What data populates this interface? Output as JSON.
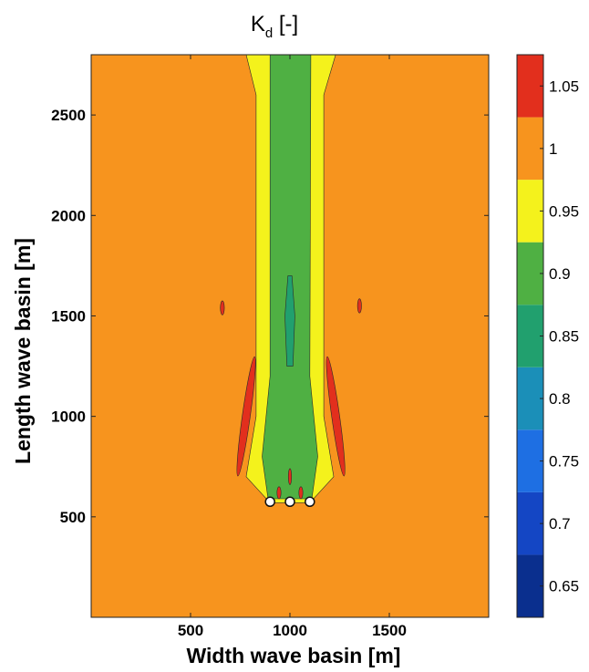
{
  "chart_data": {
    "type": "heatmap",
    "title": "K",
    "title_subscript": "d",
    "title_suffix": " [-]",
    "xlabel": "Width wave basin [m]",
    "ylabel": "Length wave basin [m]",
    "xlim": [
      0,
      2000
    ],
    "ylim": [
      0,
      2800
    ],
    "x_ticks": [
      500,
      1000,
      1500
    ],
    "y_ticks": [
      500,
      1000,
      1500,
      2000,
      2500
    ],
    "grid": false,
    "colorbar": {
      "range": [
        0.625,
        1.075
      ],
      "levels": [
        {
          "from": 0.625,
          "to": 0.675,
          "color": "#0a2f8e"
        },
        {
          "from": 0.675,
          "to": 0.725,
          "color": "#1446c4"
        },
        {
          "from": 0.725,
          "to": 0.775,
          "color": "#1e6fe3"
        },
        {
          "from": 0.775,
          "to": 0.825,
          "color": "#1b8fb8"
        },
        {
          "from": 0.825,
          "to": 0.875,
          "color": "#21a06e"
        },
        {
          "from": 0.875,
          "to": 0.925,
          "color": "#4fb043"
        },
        {
          "from": 0.925,
          "to": 0.975,
          "color": "#f4f21c"
        },
        {
          "from": 0.975,
          "to": 1.025,
          "color": "#f7941e"
        },
        {
          "from": 1.025,
          "to": 1.075,
          "color": "#e22f1d"
        }
      ],
      "tick_labels": [
        "0.65",
        "0.7",
        "0.75",
        "0.8",
        "0.85",
        "0.9",
        "0.95",
        "1",
        "1.05"
      ],
      "tick_values": [
        0.65,
        0.7,
        0.75,
        0.8,
        0.85,
        0.9,
        0.95,
        1.0,
        1.05
      ]
    },
    "background_value": 1.0,
    "field": {
      "wake_bands": [
        {
          "value": 0.95,
          "color": "#f4f21c",
          "polygon": [
            [
              900,
              570
            ],
            [
              780,
              700
            ],
            [
              830,
              1000
            ],
            [
              830,
              2600
            ],
            [
              780,
              2800
            ],
            [
              1230,
              2800
            ],
            [
              1170,
              2600
            ],
            [
              1170,
              1000
            ],
            [
              1220,
              700
            ],
            [
              1100,
              570
            ]
          ]
        },
        {
          "value": 0.9,
          "color": "#4fb043",
          "polygon": [
            [
              890,
              590
            ],
            [
              860,
              800
            ],
            [
              900,
              1200
            ],
            [
              900,
              2800
            ],
            [
              1105,
              2800
            ],
            [
              1100,
              1200
            ],
            [
              1140,
              800
            ],
            [
              1110,
              590
            ]
          ]
        },
        {
          "value": 0.85,
          "color": "#21a06e",
          "polygon": [
            [
              985,
              1250
            ],
            [
              975,
              1500
            ],
            [
              990,
              1700
            ],
            [
              1010,
              1700
            ],
            [
              1025,
              1500
            ],
            [
              1015,
              1250
            ]
          ]
        }
      ],
      "red_spots": [
        {
          "value": 1.05,
          "x": 780,
          "y": 1000,
          "rx": 20,
          "ry": 300,
          "rotate": 8
        },
        {
          "value": 1.05,
          "x": 1230,
          "y": 1000,
          "rx": 20,
          "ry": 300,
          "rotate": -8
        },
        {
          "value": 1.05,
          "x": 660,
          "y": 1540,
          "rx": 10,
          "ry": 35,
          "rotate": 0
        },
        {
          "value": 1.05,
          "x": 1350,
          "y": 1550,
          "rx": 10,
          "ry": 35,
          "rotate": 0
        },
        {
          "value": 1.05,
          "x": 1000,
          "y": 700,
          "rx": 8,
          "ry": 40,
          "rotate": 0
        },
        {
          "value": 1.05,
          "x": 945,
          "y": 620,
          "rx": 10,
          "ry": 30,
          "rotate": 0
        },
        {
          "value": 1.05,
          "x": 1055,
          "y": 620,
          "rx": 10,
          "ry": 30,
          "rotate": 0
        }
      ],
      "structures": [
        {
          "x": 900,
          "y": 575
        },
        {
          "x": 1000,
          "y": 575
        },
        {
          "x": 1100,
          "y": 575
        }
      ]
    }
  }
}
